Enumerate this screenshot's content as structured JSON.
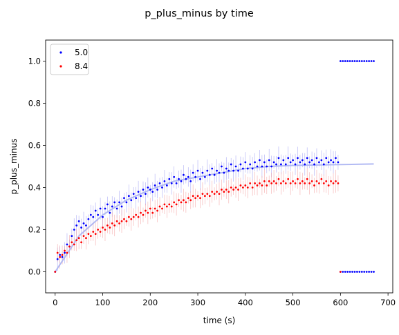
{
  "chart_data": {
    "type": "scatter",
    "title": "p_plus_minus by time",
    "xlabel": "time (s)",
    "ylabel": "p_plus_minus",
    "xlim": [
      -20,
      710
    ],
    "ylim": [
      -0.1,
      1.1
    ],
    "xticks": [
      0,
      100,
      200,
      300,
      400,
      500,
      600,
      700
    ],
    "xtick_labels": [
      "0",
      "100",
      "200",
      "300",
      "400",
      "500",
      "600",
      "700"
    ],
    "yticks": [
      0.0,
      0.2,
      0.4,
      0.6,
      0.8,
      1.0
    ],
    "ytick_labels": [
      "0.0",
      "0.2",
      "0.4",
      "0.6",
      "0.8",
      "1.0"
    ],
    "grid": false,
    "legend_position": "top-left",
    "series": [
      {
        "name": "5.0",
        "color": "#0000ff",
        "error_color": "#9a9af2",
        "points": [
          [
            0,
            0.0
          ],
          [
            5,
            0.06
          ],
          [
            10,
            0.08
          ],
          [
            15,
            0.07
          ],
          [
            20,
            0.09
          ],
          [
            25,
            0.13
          ],
          [
            30,
            0.12
          ],
          [
            35,
            0.17
          ],
          [
            40,
            0.2
          ],
          [
            45,
            0.22
          ],
          [
            50,
            0.24
          ],
          [
            55,
            0.21
          ],
          [
            60,
            0.23
          ],
          [
            65,
            0.22
          ],
          [
            70,
            0.25
          ],
          [
            75,
            0.27
          ],
          [
            80,
            0.26
          ],
          [
            85,
            0.29
          ],
          [
            90,
            0.27
          ],
          [
            95,
            0.3
          ],
          [
            100,
            0.26
          ],
          [
            105,
            0.3
          ],
          [
            110,
            0.32
          ],
          [
            115,
            0.28
          ],
          [
            120,
            0.31
          ],
          [
            125,
            0.33
          ],
          [
            130,
            0.3
          ],
          [
            135,
            0.33
          ],
          [
            140,
            0.31
          ],
          [
            145,
            0.35
          ],
          [
            150,
            0.33
          ],
          [
            155,
            0.36
          ],
          [
            160,
            0.34
          ],
          [
            165,
            0.37
          ],
          [
            170,
            0.35
          ],
          [
            175,
            0.38
          ],
          [
            180,
            0.36
          ],
          [
            185,
            0.39
          ],
          [
            190,
            0.37
          ],
          [
            195,
            0.4
          ],
          [
            200,
            0.39
          ],
          [
            205,
            0.38
          ],
          [
            210,
            0.41
          ],
          [
            215,
            0.39
          ],
          [
            220,
            0.42
          ],
          [
            225,
            0.4
          ],
          [
            230,
            0.43
          ],
          [
            235,
            0.41
          ],
          [
            240,
            0.44
          ],
          [
            245,
            0.42
          ],
          [
            250,
            0.45
          ],
          [
            255,
            0.42
          ],
          [
            260,
            0.44
          ],
          [
            265,
            0.43
          ],
          [
            270,
            0.46
          ],
          [
            275,
            0.44
          ],
          [
            280,
            0.45
          ],
          [
            285,
            0.43
          ],
          [
            290,
            0.47
          ],
          [
            295,
            0.45
          ],
          [
            300,
            0.48
          ],
          [
            305,
            0.44
          ],
          [
            310,
            0.47
          ],
          [
            315,
            0.45
          ],
          [
            320,
            0.48
          ],
          [
            325,
            0.46
          ],
          [
            330,
            0.49
          ],
          [
            335,
            0.46
          ],
          [
            340,
            0.48
          ],
          [
            345,
            0.47
          ],
          [
            350,
            0.5
          ],
          [
            355,
            0.47
          ],
          [
            360,
            0.49
          ],
          [
            365,
            0.48
          ],
          [
            370,
            0.51
          ],
          [
            375,
            0.48
          ],
          [
            380,
            0.5
          ],
          [
            385,
            0.48
          ],
          [
            390,
            0.51
          ],
          [
            395,
            0.49
          ],
          [
            400,
            0.52
          ],
          [
            405,
            0.49
          ],
          [
            410,
            0.51
          ],
          [
            415,
            0.49
          ],
          [
            420,
            0.52
          ],
          [
            425,
            0.5
          ],
          [
            430,
            0.53
          ],
          [
            435,
            0.5
          ],
          [
            440,
            0.52
          ],
          [
            445,
            0.5
          ],
          [
            450,
            0.53
          ],
          [
            455,
            0.5
          ],
          [
            460,
            0.52
          ],
          [
            465,
            0.51
          ],
          [
            470,
            0.54
          ],
          [
            475,
            0.51
          ],
          [
            480,
            0.53
          ],
          [
            485,
            0.51
          ],
          [
            490,
            0.54
          ],
          [
            495,
            0.52
          ],
          [
            500,
            0.53
          ],
          [
            505,
            0.51
          ],
          [
            510,
            0.54
          ],
          [
            515,
            0.52
          ],
          [
            520,
            0.53
          ],
          [
            525,
            0.51
          ],
          [
            530,
            0.54
          ],
          [
            535,
            0.52
          ],
          [
            540,
            0.53
          ],
          [
            545,
            0.51
          ],
          [
            550,
            0.54
          ],
          [
            555,
            0.52
          ],
          [
            560,
            0.53
          ],
          [
            565,
            0.51
          ],
          [
            570,
            0.54
          ],
          [
            575,
            0.52
          ],
          [
            580,
            0.53
          ],
          [
            585,
            0.52
          ],
          [
            590,
            0.54
          ],
          [
            595,
            0.52
          ]
        ],
        "upper_t": [
          600,
          605,
          610,
          615,
          620,
          625,
          630,
          635,
          640,
          645,
          650,
          655,
          660,
          665,
          670
        ],
        "upper_y": 1.0,
        "lower_t": [
          600,
          605,
          610,
          615,
          620,
          625,
          630,
          635,
          640,
          645,
          650,
          655,
          660,
          665,
          670
        ],
        "lower_y": 0.0,
        "fit": [
          [
            0,
            0.0
          ],
          [
            50,
            0.17
          ],
          [
            100,
            0.27
          ],
          [
            150,
            0.34
          ],
          [
            200,
            0.39
          ],
          [
            250,
            0.43
          ],
          [
            300,
            0.45
          ],
          [
            350,
            0.47
          ],
          [
            400,
            0.49
          ],
          [
            450,
            0.5
          ],
          [
            500,
            0.505
          ],
          [
            550,
            0.507
          ],
          [
            600,
            0.509
          ],
          [
            670,
            0.512
          ]
        ]
      },
      {
        "name": "8.4",
        "color": "#ff0000",
        "error_color": "#f29a9a",
        "points": [
          [
            0,
            0.0
          ],
          [
            5,
            0.09
          ],
          [
            10,
            0.07
          ],
          [
            15,
            0.08
          ],
          [
            20,
            0.1
          ],
          [
            25,
            0.09
          ],
          [
            30,
            0.12
          ],
          [
            35,
            0.14
          ],
          [
            40,
            0.13
          ],
          [
            45,
            0.15
          ],
          [
            50,
            0.16
          ],
          [
            55,
            0.14
          ],
          [
            60,
            0.17
          ],
          [
            65,
            0.16
          ],
          [
            70,
            0.18
          ],
          [
            75,
            0.17
          ],
          [
            80,
            0.19
          ],
          [
            85,
            0.18
          ],
          [
            90,
            0.2
          ],
          [
            95,
            0.19
          ],
          [
            100,
            0.21
          ],
          [
            105,
            0.2
          ],
          [
            110,
            0.22
          ],
          [
            115,
            0.21
          ],
          [
            120,
            0.23
          ],
          [
            125,
            0.22
          ],
          [
            130,
            0.24
          ],
          [
            135,
            0.23
          ],
          [
            140,
            0.24
          ],
          [
            145,
            0.25
          ],
          [
            150,
            0.24
          ],
          [
            155,
            0.26
          ],
          [
            160,
            0.25
          ],
          [
            165,
            0.26
          ],
          [
            170,
            0.27
          ],
          [
            175,
            0.26
          ],
          [
            180,
            0.28
          ],
          [
            185,
            0.27
          ],
          [
            190,
            0.29
          ],
          [
            195,
            0.28
          ],
          [
            200,
            0.3
          ],
          [
            205,
            0.28
          ],
          [
            210,
            0.3
          ],
          [
            215,
            0.29
          ],
          [
            220,
            0.31
          ],
          [
            225,
            0.3
          ],
          [
            230,
            0.32
          ],
          [
            235,
            0.31
          ],
          [
            240,
            0.32
          ],
          [
            245,
            0.31
          ],
          [
            250,
            0.33
          ],
          [
            255,
            0.32
          ],
          [
            260,
            0.34
          ],
          [
            265,
            0.33
          ],
          [
            270,
            0.34
          ],
          [
            275,
            0.33
          ],
          [
            280,
            0.35
          ],
          [
            285,
            0.34
          ],
          [
            290,
            0.36
          ],
          [
            295,
            0.35
          ],
          [
            300,
            0.36
          ],
          [
            305,
            0.35
          ],
          [
            310,
            0.37
          ],
          [
            315,
            0.36
          ],
          [
            320,
            0.37
          ],
          [
            325,
            0.36
          ],
          [
            330,
            0.38
          ],
          [
            335,
            0.37
          ],
          [
            340,
            0.38
          ],
          [
            345,
            0.37
          ],
          [
            350,
            0.39
          ],
          [
            355,
            0.38
          ],
          [
            360,
            0.39
          ],
          [
            365,
            0.38
          ],
          [
            370,
            0.4
          ],
          [
            375,
            0.39
          ],
          [
            380,
            0.4
          ],
          [
            385,
            0.39
          ],
          [
            390,
            0.41
          ],
          [
            395,
            0.4
          ],
          [
            400,
            0.41
          ],
          [
            405,
            0.4
          ],
          [
            410,
            0.42
          ],
          [
            415,
            0.4
          ],
          [
            420,
            0.42
          ],
          [
            425,
            0.41
          ],
          [
            430,
            0.42
          ],
          [
            435,
            0.41
          ],
          [
            440,
            0.43
          ],
          [
            445,
            0.41
          ],
          [
            450,
            0.43
          ],
          [
            455,
            0.42
          ],
          [
            460,
            0.43
          ],
          [
            465,
            0.42
          ],
          [
            470,
            0.44
          ],
          [
            475,
            0.42
          ],
          [
            480,
            0.43
          ],
          [
            485,
            0.42
          ],
          [
            490,
            0.44
          ],
          [
            495,
            0.42
          ],
          [
            500,
            0.43
          ],
          [
            505,
            0.42
          ],
          [
            510,
            0.44
          ],
          [
            515,
            0.42
          ],
          [
            520,
            0.43
          ],
          [
            525,
            0.42
          ],
          [
            530,
            0.44
          ],
          [
            535,
            0.42
          ],
          [
            540,
            0.43
          ],
          [
            545,
            0.41
          ],
          [
            550,
            0.43
          ],
          [
            555,
            0.42
          ],
          [
            560,
            0.44
          ],
          [
            565,
            0.42
          ],
          [
            570,
            0.43
          ],
          [
            575,
            0.41
          ],
          [
            580,
            0.43
          ],
          [
            585,
            0.42
          ],
          [
            590,
            0.43
          ],
          [
            595,
            0.42
          ]
        ],
        "upper_t": [],
        "upper_y": 1.0,
        "lower_t": [
          600
        ],
        "lower_y": 0.0,
        "fit": []
      }
    ]
  }
}
